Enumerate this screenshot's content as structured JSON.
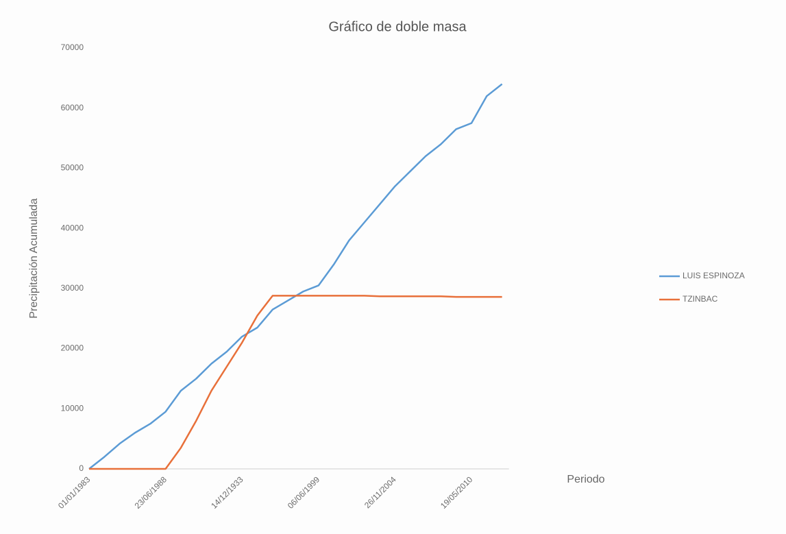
{
  "chart_data": {
    "type": "line",
    "title": "Gráfico de doble masa",
    "x_label": "Periodo",
    "y_label": "Precipitación Acumulada",
    "categories": [
      "01/01/1983",
      null,
      null,
      null,
      null,
      "23/06/1988",
      null,
      null,
      null,
      null,
      "14/12/1933",
      null,
      null,
      null,
      null,
      "06/06/1999",
      null,
      null,
      null,
      null,
      "26/11/2004",
      null,
      null,
      null,
      null,
      "19/05/2010",
      null,
      null
    ],
    "series": [
      {
        "name": "LUIS ESPINOZA",
        "color": "#5b9bd5",
        "values": [
          0,
          2000,
          4200,
          6000,
          7500,
          9500,
          13000,
          15000,
          17500,
          19500,
          22000,
          23500,
          26500,
          28000,
          29500,
          30500,
          34000,
          38000,
          41000,
          44000,
          47000,
          49500,
          52000,
          54000,
          56500,
          57500,
          62000,
          64000
        ]
      },
      {
        "name": "TZINBAC",
        "color": "#e8703a",
        "values": [
          0,
          0,
          0,
          0,
          0,
          0,
          3500,
          8000,
          13000,
          17000,
          21000,
          25500,
          28800,
          28800,
          28800,
          28800,
          28800,
          28800,
          28800,
          28700,
          28700,
          28700,
          28700,
          28700,
          28600,
          28600,
          28600,
          28600
        ]
      }
    ],
    "ylim": [
      0,
      70000
    ],
    "yticks": [
      0,
      10000,
      20000,
      30000,
      40000,
      50000,
      60000,
      70000
    ],
    "grid": false,
    "legend": "right"
  }
}
